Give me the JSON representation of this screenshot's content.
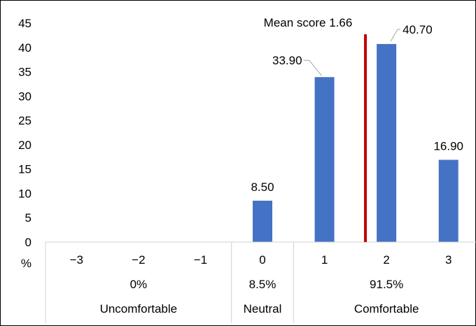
{
  "chart_data": {
    "type": "bar",
    "categories": [
      "−3",
      "−2",
      "−1",
      "0",
      "1",
      "2",
      "3"
    ],
    "values": [
      null,
      null,
      null,
      8.5,
      33.9,
      40.7,
      16.9
    ],
    "data_labels": [
      "",
      "",
      "",
      "8.50",
      "33.90",
      "40.70",
      "16.90"
    ],
    "ylim": [
      0,
      45
    ],
    "yticks": [
      0,
      5,
      10,
      15,
      20,
      25,
      30,
      35,
      40,
      45
    ],
    "ylabel": "%",
    "bar_color": "#4472C4",
    "mean_line": {
      "value": 1.66,
      "label": "Mean score 1.66",
      "color": "#C00000"
    },
    "groups": [
      {
        "name": "Uncomfortable",
        "share": "0%",
        "categories": [
          "−3",
          "−2",
          "−1"
        ]
      },
      {
        "name": "Neutral",
        "share": "8.5%",
        "categories": [
          "0"
        ]
      },
      {
        "name": "Comfortable",
        "share": "91.5%",
        "categories": [
          "1",
          "2",
          "3"
        ]
      }
    ],
    "grid": false
  }
}
